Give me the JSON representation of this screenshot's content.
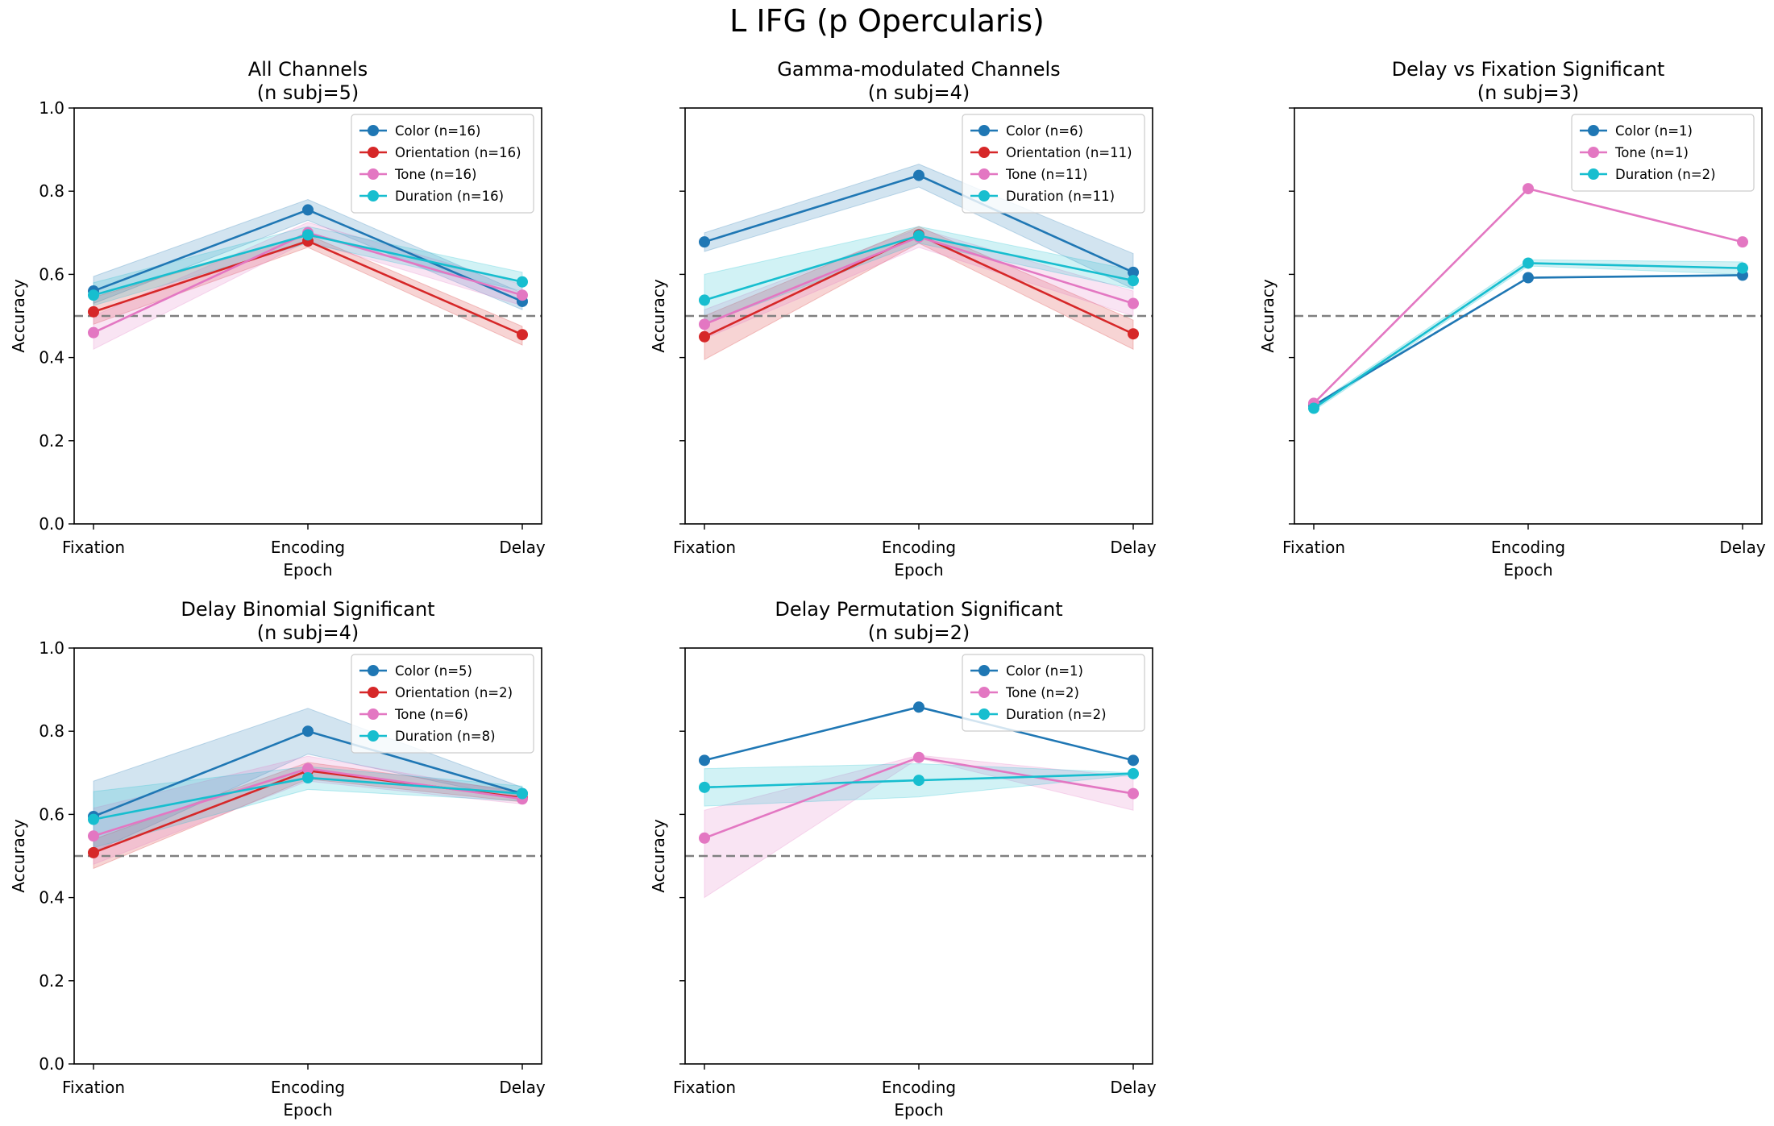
{
  "figure": {
    "title": "L IFG (p Opercularis)"
  },
  "colors": {
    "Color": "#1f77b4",
    "Orientation": "#d62728",
    "Tone": "#e377c2",
    "Duration": "#17becf",
    "chance": "#808080"
  },
  "chart_data": [
    {
      "type": "line",
      "title_line1": "All Channels",
      "title_line2": "(n subj=5)",
      "xlabel": "Epoch",
      "ylabel": "Accuracy",
      "categories": [
        "Fixation",
        "Encoding",
        "Delay"
      ],
      "ylim": [
        0,
        1
      ],
      "yticks": [
        "0.0",
        "0.2",
        "0.4",
        "0.6",
        "0.8",
        "1.0"
      ],
      "chance": 0.5,
      "legend_position": "upper-right",
      "series": [
        {
          "name": "Color (n=16)",
          "key": "Color",
          "values": [
            0.56,
            0.755,
            0.535
          ],
          "lower": [
            0.53,
            0.73,
            0.515
          ],
          "upper": [
            0.595,
            0.78,
            0.555
          ]
        },
        {
          "name": "Orientation (n=16)",
          "key": "Orientation",
          "values": [
            0.51,
            0.68,
            0.455
          ],
          "lower": [
            0.48,
            0.665,
            0.43
          ],
          "upper": [
            0.545,
            0.695,
            0.475
          ]
        },
        {
          "name": "Tone (n=16)",
          "key": "Tone",
          "values": [
            0.46,
            0.7,
            0.55
          ],
          "lower": [
            0.42,
            0.68,
            0.525
          ],
          "upper": [
            0.5,
            0.725,
            0.575
          ]
        },
        {
          "name": "Duration (n=16)",
          "key": "Duration",
          "values": [
            0.55,
            0.695,
            0.582
          ],
          "lower": [
            0.525,
            0.675,
            0.56
          ],
          "upper": [
            0.58,
            0.715,
            0.605
          ]
        }
      ]
    },
    {
      "type": "line",
      "title_line1": "Gamma-modulated Channels",
      "title_line2": "(n subj=4)",
      "xlabel": "Epoch",
      "ylabel": "Accuracy",
      "categories": [
        "Fixation",
        "Encoding",
        "Delay"
      ],
      "ylim": [
        0,
        1
      ],
      "chance": 0.5,
      "legend_position": "upper-right",
      "series": [
        {
          "name": "Color (n=6)",
          "key": "Color",
          "values": [
            0.678,
            0.838,
            0.605
          ],
          "lower": [
            0.655,
            0.81,
            0.565
          ],
          "upper": [
            0.7,
            0.865,
            0.65
          ]
        },
        {
          "name": "Orientation (n=11)",
          "key": "Orientation",
          "values": [
            0.45,
            0.695,
            0.457
          ],
          "lower": [
            0.395,
            0.675,
            0.42
          ],
          "upper": [
            0.5,
            0.715,
            0.49
          ]
        },
        {
          "name": "Tone (n=11)",
          "key": "Tone",
          "values": [
            0.48,
            0.69,
            0.53
          ],
          "lower": [
            0.445,
            0.665,
            0.5
          ],
          "upper": [
            0.515,
            0.71,
            0.56
          ]
        },
        {
          "name": "Duration (n=11)",
          "key": "Duration",
          "values": [
            0.538,
            0.693,
            0.585
          ],
          "lower": [
            0.48,
            0.675,
            0.565
          ],
          "upper": [
            0.6,
            0.715,
            0.61
          ]
        }
      ]
    },
    {
      "type": "line",
      "title_line1": "Delay vs Fixation Significant",
      "title_line2": "(n subj=3)",
      "xlabel": "Epoch",
      "ylabel": "Accuracy",
      "categories": [
        "Fixation",
        "Encoding",
        "Delay"
      ],
      "ylim": [
        0,
        1
      ],
      "chance": 0.5,
      "legend_position": "upper-right",
      "series": [
        {
          "name": "Color (n=1)",
          "key": "Color",
          "values": [
            0.285,
            0.592,
            0.598
          ]
        },
        {
          "name": "Tone (n=1)",
          "key": "Tone",
          "values": [
            0.29,
            0.806,
            0.678
          ]
        },
        {
          "name": "Duration (n=2)",
          "key": "Duration",
          "values": [
            0.278,
            0.627,
            0.615
          ],
          "lower": [
            0.272,
            0.62,
            0.6
          ],
          "upper": [
            0.284,
            0.635,
            0.63
          ]
        }
      ]
    },
    {
      "type": "line",
      "title_line1": "Delay Binomial Significant",
      "title_line2": "(n subj=4)",
      "xlabel": "Epoch",
      "ylabel": "Accuracy",
      "categories": [
        "Fixation",
        "Encoding",
        "Delay"
      ],
      "ylim": [
        0,
        1
      ],
      "yticks": [
        "0.0",
        "0.2",
        "0.4",
        "0.6",
        "0.8",
        "1.0"
      ],
      "chance": 0.5,
      "legend_position": "upper-right",
      "series": [
        {
          "name": "Color (n=5)",
          "key": "Color",
          "values": [
            0.595,
            0.8,
            0.65
          ],
          "lower": [
            0.51,
            0.745,
            0.635
          ],
          "upper": [
            0.68,
            0.855,
            0.665
          ]
        },
        {
          "name": "Orientation (n=2)",
          "key": "Orientation",
          "values": [
            0.508,
            0.705,
            0.64
          ],
          "lower": [
            0.47,
            0.685,
            0.63
          ],
          "upper": [
            0.54,
            0.725,
            0.655
          ]
        },
        {
          "name": "Tone (n=6)",
          "key": "Tone",
          "values": [
            0.548,
            0.71,
            0.637
          ],
          "lower": [
            0.48,
            0.68,
            0.625
          ],
          "upper": [
            0.615,
            0.74,
            0.65
          ]
        },
        {
          "name": "Duration (n=8)",
          "key": "Duration",
          "values": [
            0.588,
            0.688,
            0.65
          ],
          "lower": [
            0.52,
            0.66,
            0.632
          ],
          "upper": [
            0.655,
            0.715,
            0.668
          ]
        }
      ]
    },
    {
      "type": "line",
      "title_line1": "Delay Permutation Significant",
      "title_line2": "(n subj=2)",
      "xlabel": "Epoch",
      "ylabel": "Accuracy",
      "categories": [
        "Fixation",
        "Encoding",
        "Delay"
      ],
      "ylim": [
        0,
        1
      ],
      "chance": 0.5,
      "legend_position": "upper-right",
      "series": [
        {
          "name": "Color (n=1)",
          "key": "Color",
          "values": [
            0.73,
            0.858,
            0.73
          ]
        },
        {
          "name": "Tone (n=2)",
          "key": "Tone",
          "values": [
            0.543,
            0.737,
            0.65
          ],
          "lower": [
            0.4,
            0.735,
            0.61
          ],
          "upper": [
            0.61,
            0.742,
            0.69
          ]
        },
        {
          "name": "Duration (n=2)",
          "key": "Duration",
          "values": [
            0.665,
            0.682,
            0.698
          ],
          "lower": [
            0.62,
            0.642,
            0.695
          ],
          "upper": [
            0.71,
            0.722,
            0.7
          ]
        }
      ]
    }
  ]
}
